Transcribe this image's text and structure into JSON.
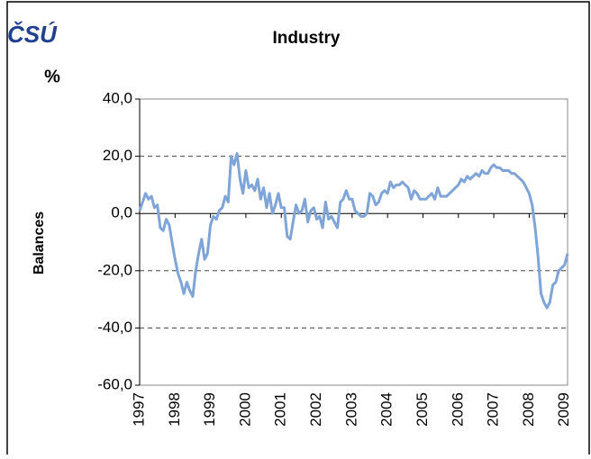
{
  "logo": "ČSÚ",
  "chart_data": {
    "type": "line",
    "title": "Industry",
    "unit_label": "%",
    "y_label": "Balances",
    "color": "#7ea4d8",
    "grid": true,
    "ylim": [
      -60,
      40
    ],
    "yticks": [
      {
        "value": -60,
        "label": "-60,0"
      },
      {
        "value": -40,
        "label": "-40,0"
      },
      {
        "value": -20,
        "label": "-20,0"
      },
      {
        "value": 0,
        "label": "0,0"
      },
      {
        "value": 20,
        "label": "20,0"
      },
      {
        "value": 40,
        "label": "40,0"
      }
    ],
    "categories": [
      "1997",
      null,
      null,
      null,
      null,
      null,
      null,
      null,
      null,
      null,
      null,
      null,
      "1998",
      null,
      null,
      null,
      null,
      null,
      null,
      null,
      null,
      null,
      null,
      null,
      "1999",
      null,
      null,
      null,
      null,
      null,
      null,
      null,
      null,
      null,
      null,
      null,
      "2000",
      null,
      null,
      null,
      null,
      null,
      null,
      null,
      null,
      null,
      null,
      null,
      "2001",
      null,
      null,
      null,
      null,
      null,
      null,
      null,
      null,
      null,
      null,
      null,
      "2002",
      null,
      null,
      null,
      null,
      null,
      null,
      null,
      null,
      null,
      null,
      null,
      "2003",
      null,
      null,
      null,
      null,
      null,
      null,
      null,
      null,
      null,
      null,
      null,
      "2004",
      null,
      null,
      null,
      null,
      null,
      null,
      null,
      null,
      null,
      null,
      null,
      "2005",
      null,
      null,
      null,
      null,
      null,
      null,
      null,
      null,
      null,
      null,
      null,
      "2006",
      null,
      null,
      null,
      null,
      null,
      null,
      null,
      null,
      null,
      null,
      null,
      "2007",
      null,
      null,
      null,
      null,
      null,
      null,
      null,
      null,
      null,
      null,
      null,
      "2008",
      null,
      null,
      null,
      null,
      null,
      null,
      null,
      null,
      null,
      null,
      null,
      "2009",
      null
    ],
    "values": [
      1,
      4,
      7,
      5,
      6,
      2,
      3,
      -5,
      -6,
      -2,
      -4,
      -10,
      -16,
      -21,
      -24,
      -28,
      -24,
      -27,
      -29,
      -20,
      -14,
      -9,
      -16,
      -14,
      -4,
      -1,
      -2,
      1,
      2,
      6,
      4,
      20,
      17,
      21,
      12,
      7,
      15,
      9,
      10,
      8,
      12,
      5,
      9,
      2,
      7,
      0,
      3,
      7,
      2,
      2,
      -8,
      -9,
      -3,
      3,
      0,
      1,
      5,
      -3,
      1,
      2,
      -2,
      -1,
      -5,
      4,
      -2,
      -1,
      -3,
      -5,
      4,
      5,
      8,
      5,
      5,
      1,
      0,
      -1,
      -1,
      0,
      7,
      6,
      3,
      4,
      7,
      8,
      7,
      11,
      9,
      10,
      10,
      11,
      10,
      9,
      5,
      8,
      7,
      5,
      5,
      5,
      6,
      7,
      5,
      9,
      6,
      6,
      6,
      7,
      8,
      9,
      10,
      12,
      11,
      13,
      12,
      13,
      14,
      13,
      15,
      14,
      14,
      16,
      17,
      16,
      16,
      15,
      15,
      15,
      14,
      14,
      13,
      12,
      11,
      9,
      7,
      3,
      -5,
      -15,
      -28,
      -31,
      -33,
      -31,
      -25,
      -24,
      -20,
      -19,
      -18,
      -14
    ]
  }
}
